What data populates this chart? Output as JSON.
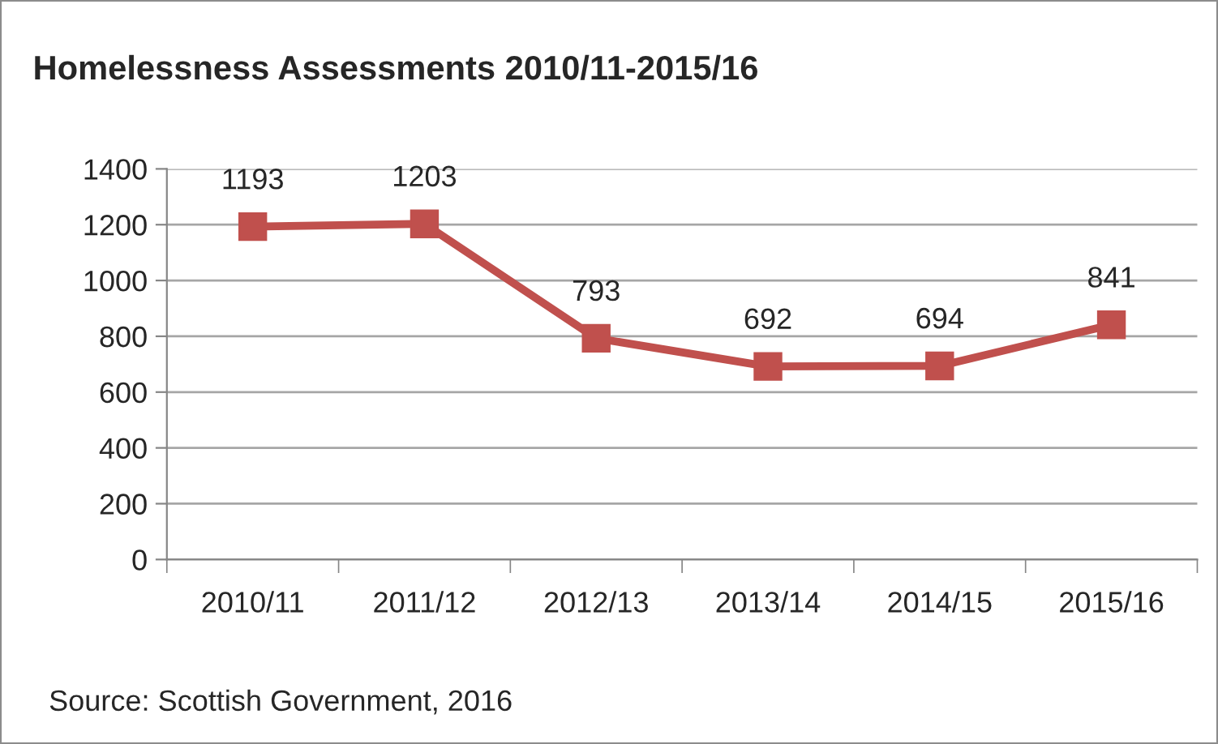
{
  "chart_data": {
    "type": "line",
    "title": "Homelessness Assessments 2010/11-2015/16",
    "categories": [
      "2010/11",
      "2011/12",
      "2012/13",
      "2013/14",
      "2014/15",
      "2015/16"
    ],
    "series": [
      {
        "color": "#c0504d",
        "values": [
          1193,
          1203,
          793,
          692,
          694,
          841
        ]
      }
    ],
    "ylim": [
      0,
      1400
    ],
    "yticks": [
      0,
      200,
      400,
      600,
      800,
      1000,
      1200,
      1400
    ],
    "grid": "y",
    "marker": "square",
    "line_style": "solid",
    "data_labels": true,
    "legend": false,
    "annotations": [
      "Source: Scottish Government, 2016"
    ]
  }
}
